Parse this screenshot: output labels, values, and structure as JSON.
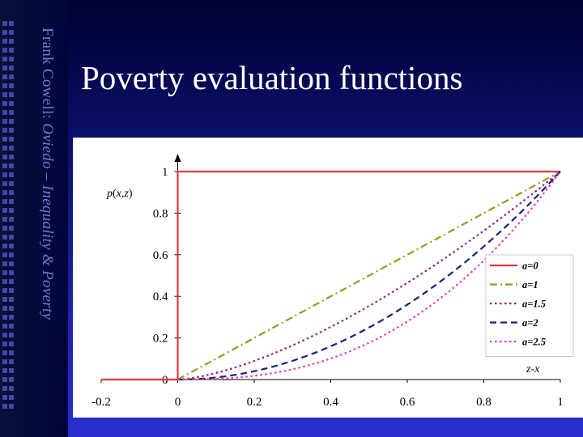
{
  "sidebar": {
    "author": "Frank Cowell: ",
    "subtitle": "Oviedo – Inequality & Poverty"
  },
  "slide": {
    "title": "Poverty evaluation functions"
  },
  "chart_data": {
    "type": "line",
    "y_axis_label_parts": [
      "p",
      "(",
      "x",
      ",",
      "z",
      ")"
    ],
    "x_axis_label": "z-x",
    "xlim": [
      -0.2,
      1
    ],
    "ylim": [
      0,
      1
    ],
    "x_ticks": [
      "-0.2",
      "0",
      "0.2",
      "0.4",
      "0.6",
      "0.8",
      "1"
    ],
    "y_ticks": [
      "0",
      "0.2",
      "0.4",
      "0.6",
      "0.8",
      "1"
    ],
    "grid": false,
    "legend_position": "right",
    "series": [
      {
        "name": "a=0",
        "color": "#e23a3a",
        "dash": "solid",
        "exponent": 0,
        "x": [
          -0.2,
          -0.1,
          0,
          0,
          0.2,
          0.4,
          0.6,
          0.8,
          1
        ],
        "y": [
          0,
          0,
          0,
          1,
          1,
          1,
          1,
          1,
          1
        ]
      },
      {
        "name": "a=1",
        "color": "#9a9a22",
        "dash": "dashdot",
        "exponent": 1,
        "x": [
          0,
          0.2,
          0.4,
          0.6,
          0.8,
          1
        ],
        "y": [
          0,
          0.2,
          0.4,
          0.6,
          0.8,
          1
        ]
      },
      {
        "name": "a=1.5",
        "color": "#8e1f7a",
        "dash": "dot",
        "exponent": 1.5,
        "x": [
          0,
          0.2,
          0.4,
          0.6,
          0.8,
          1
        ],
        "y": [
          0,
          0.089,
          0.253,
          0.465,
          0.716,
          1
        ]
      },
      {
        "name": "a=2",
        "color": "#1e1f7a",
        "dash": "dash",
        "exponent": 2,
        "x": [
          0,
          0.2,
          0.4,
          0.6,
          0.8,
          1
        ],
        "y": [
          0,
          0.04,
          0.16,
          0.36,
          0.64,
          1
        ]
      },
      {
        "name": "a=2.5",
        "color": "#e0409a",
        "dash": "dot",
        "exponent": 2.5,
        "x": [
          0,
          0.2,
          0.4,
          0.6,
          0.8,
          1
        ],
        "y": [
          0,
          0.018,
          0.101,
          0.279,
          0.572,
          1
        ]
      }
    ]
  }
}
